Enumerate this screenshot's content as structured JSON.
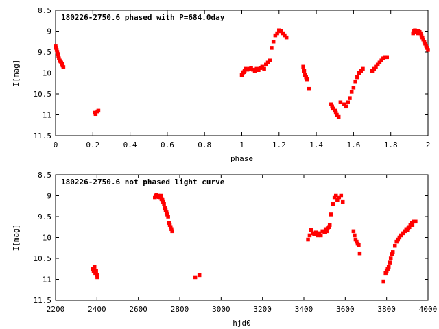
{
  "chart_data": [
    {
      "type": "scatter",
      "title": "180226-2750.6 phased with P=684.0day",
      "xlabel": "phase",
      "ylabel": "I[mag]",
      "xlim": [
        0,
        2
      ],
      "ylim": [
        8.5,
        11.5
      ],
      "y_inverted": true,
      "grid": false,
      "point_color": "#ff0000",
      "x_ticks": [
        "0",
        "0.2",
        "0.4",
        "0.6",
        "0.8",
        "1",
        "1.2",
        "1.4",
        "1.6",
        "1.8",
        "2"
      ],
      "y_ticks": [
        "8.5",
        "9",
        "9.5",
        "10",
        "10.5",
        "11",
        "11.5"
      ],
      "series": [
        {
          "x": [
            0.0,
            0.003,
            0.006,
            0.009,
            0.012,
            0.015,
            0.018,
            0.022,
            0.026,
            0.03,
            0.034,
            0.038,
            0.042,
            0.21,
            0.215,
            0.225,
            0.23,
            1.0,
            1.005,
            1.01,
            1.015,
            1.02,
            1.03,
            1.04,
            1.05,
            1.06,
            1.07,
            1.08,
            1.09,
            1.1,
            1.11,
            1.12,
            1.13,
            1.14,
            1.15,
            1.16,
            1.17,
            1.18,
            1.19,
            1.2,
            1.21,
            1.22,
            1.23,
            1.24,
            1.33,
            1.335,
            1.34,
            1.345,
            1.35,
            1.36,
            1.48,
            1.485,
            1.49,
            1.5,
            1.505,
            1.51,
            1.52,
            1.53,
            1.55,
            1.56,
            1.57,
            1.58,
            1.59,
            1.6,
            1.61,
            1.62,
            1.63,
            1.64,
            1.65,
            1.7,
            1.71,
            1.72,
            1.73,
            1.74,
            1.75,
            1.76,
            1.77,
            1.78,
            1.92,
            1.925,
            1.93,
            1.935,
            1.94,
            1.945,
            1.95,
            1.955,
            1.96,
            1.965,
            1.97,
            1.975,
            1.98,
            1.985,
            1.99,
            1.995,
            2.0
          ],
          "y": [
            9.35,
            9.4,
            9.45,
            9.5,
            9.55,
            9.6,
            9.65,
            9.7,
            9.72,
            9.75,
            9.78,
            9.82,
            9.86,
            10.95,
            10.98,
            10.92,
            10.9,
            10.05,
            10.0,
            9.98,
            9.95,
            9.9,
            9.92,
            9.9,
            9.88,
            9.92,
            9.95,
            9.9,
            9.93,
            9.88,
            9.85,
            9.9,
            9.8,
            9.75,
            9.7,
            9.4,
            9.25,
            9.1,
            9.05,
            8.98,
            9.0,
            9.05,
            9.1,
            9.15,
            9.85,
            9.95,
            10.05,
            10.1,
            10.15,
            10.38,
            10.75,
            10.8,
            10.85,
            10.9,
            10.95,
            11.0,
            11.05,
            10.7,
            10.75,
            10.8,
            10.7,
            10.6,
            10.45,
            10.35,
            10.2,
            10.1,
            10.0,
            9.95,
            9.9,
            9.95,
            9.9,
            9.85,
            9.8,
            9.75,
            9.7,
            9.65,
            9.62,
            9.62,
            9.05,
            9.0,
            8.98,
            9.02,
            9.0,
            9.05,
            9.0,
            9.02,
            9.05,
            9.1,
            9.15,
            9.2,
            9.25,
            9.3,
            9.35,
            9.4,
            9.45
          ]
        }
      ]
    },
    {
      "type": "scatter",
      "title": "180226-2750.6 not phased light curve",
      "xlabel": "hjd0",
      "ylabel": "I[mag]",
      "xlim": [
        2200,
        4000
      ],
      "ylim": [
        8.5,
        11.5
      ],
      "y_inverted": true,
      "grid": false,
      "point_color": "#ff0000",
      "x_ticks": [
        "2200",
        "2400",
        "2600",
        "2800",
        "3000",
        "3200",
        "3400",
        "3600",
        "3800",
        "4000"
      ],
      "y_ticks": [
        "8.5",
        "9",
        "9.5",
        "10",
        "10.5",
        "11",
        "11.5"
      ],
      "series": [
        {
          "x": [
            2380,
            2384,
            2388,
            2392,
            2396,
            2400,
            2402,
            2680,
            2684,
            2688,
            2692,
            2696,
            2700,
            2704,
            2708,
            2712,
            2716,
            2720,
            2724,
            2728,
            2732,
            2736,
            2740,
            2744,
            2748,
            2752,
            2756,
            2760,
            2764,
            2875,
            2895,
            3420,
            3428,
            3435,
            3442,
            3450,
            3458,
            3466,
            3474,
            3482,
            3490,
            3500,
            3505,
            3510,
            3515,
            3520,
            3525,
            3530,
            3540,
            3548,
            3555,
            3562,
            3570,
            3580,
            3588,
            3640,
            3645,
            3650,
            3655,
            3660,
            3665,
            3670,
            3785,
            3795,
            3800,
            3805,
            3810,
            3815,
            3820,
            3825,
            3830,
            3840,
            3848,
            3855,
            3862,
            3870,
            3880,
            3888,
            3895,
            3900,
            3905,
            3910,
            3915,
            3920,
            3925,
            3930,
            3940
          ],
          "y": [
            10.75,
            10.8,
            10.7,
            10.85,
            10.8,
            10.9,
            10.95,
            9.05,
            9.0,
            8.98,
            9.02,
            9.0,
            9.03,
            9.05,
            9.0,
            9.08,
            9.1,
            9.15,
            9.2,
            9.3,
            9.35,
            9.4,
            9.45,
            9.5,
            9.65,
            9.7,
            9.75,
            9.8,
            9.85,
            10.95,
            10.9,
            10.05,
            9.95,
            9.82,
            9.9,
            9.92,
            9.88,
            9.95,
            9.9,
            9.95,
            9.85,
            9.88,
            9.8,
            9.85,
            9.78,
            9.75,
            9.7,
            9.45,
            9.2,
            9.05,
            9.0,
            9.1,
            9.05,
            9.0,
            9.15,
            9.85,
            9.95,
            10.05,
            10.1,
            10.15,
            10.18,
            10.38,
            11.05,
            10.85,
            10.8,
            10.75,
            10.7,
            10.6,
            10.5,
            10.4,
            10.35,
            10.2,
            10.1,
            10.05,
            10.0,
            9.95,
            9.9,
            9.85,
            9.8,
            9.82,
            9.78,
            9.75,
            9.7,
            9.65,
            9.7,
            9.62,
            9.62
          ]
        }
      ]
    }
  ]
}
